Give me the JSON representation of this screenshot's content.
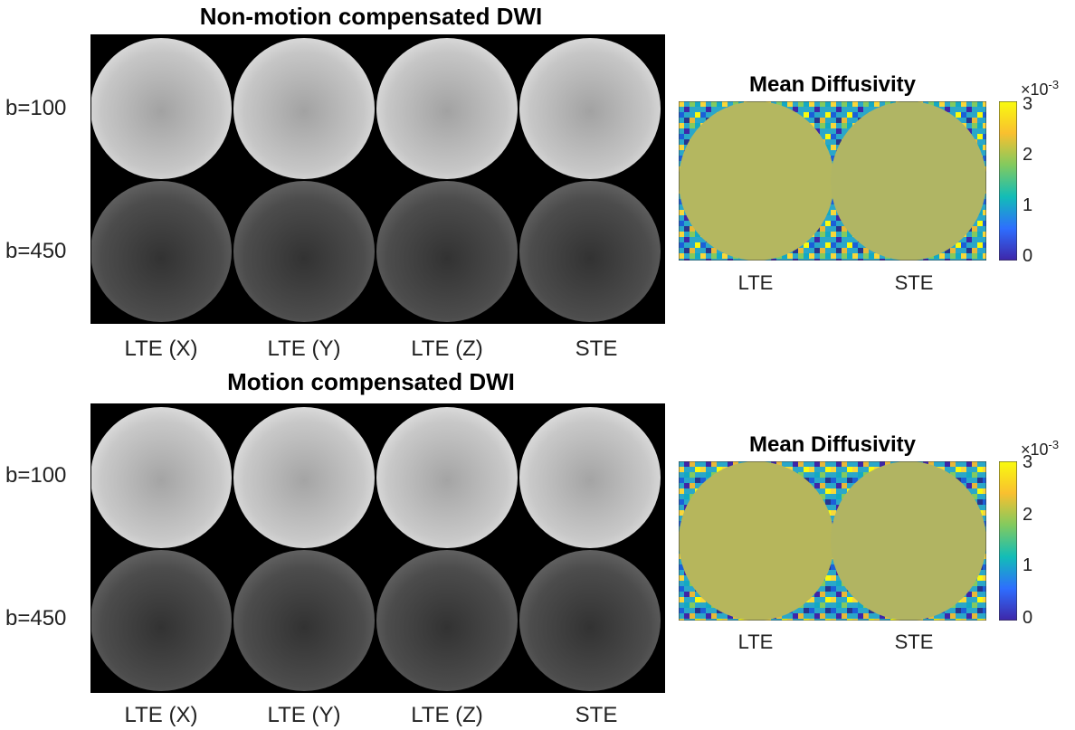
{
  "panels": [
    {
      "title": "Non-motion compensated DWI",
      "rows": [
        "b=100",
        "b=450"
      ],
      "columns": [
        "LTE (X)",
        "LTE (Y)",
        "LTE (Z)",
        "STE"
      ],
      "md_map": {
        "title": "Mean Diffusivity",
        "x_labels": [
          "LTE",
          "STE"
        ],
        "colorbar_ticks": [
          "3",
          "2",
          "1",
          "0"
        ],
        "colorbar_multiplier_base": "×10",
        "colorbar_multiplier_exp": "-3"
      }
    },
    {
      "title": "Motion compensated DWI",
      "rows": [
        "b=100",
        "b=450"
      ],
      "columns": [
        "LTE (X)",
        "LTE (Y)",
        "LTE (Z)",
        "STE"
      ],
      "md_map": {
        "title": "Mean Diffusivity",
        "x_labels": [
          "LTE",
          "STE"
        ],
        "colorbar_ticks": [
          "3",
          "2",
          "1",
          "0"
        ],
        "colorbar_multiplier_base": "×10",
        "colorbar_multiplier_exp": "-3"
      }
    }
  ],
  "colors": {
    "background": "#000000",
    "md_fill": "#b4b760",
    "colormap": [
      "#3e26a8",
      "#2e6efe",
      "#12bdb7",
      "#82ca5f",
      "#f9c02f",
      "#f9fb0e"
    ]
  }
}
